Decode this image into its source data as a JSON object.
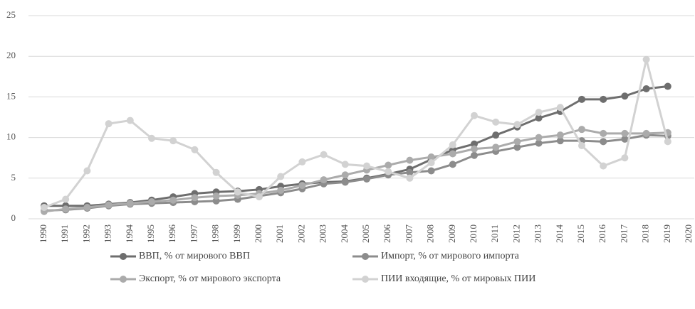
{
  "chart_data": {
    "type": "line",
    "categories": [
      "1990",
      "1991",
      "1992",
      "1993",
      "1994",
      "1995",
      "1996",
      "1997",
      "1998",
      "1999",
      "2000",
      "2001",
      "2002",
      "2003",
      "2004",
      "2005",
      "2006",
      "2007",
      "2008",
      "2009",
      "2010",
      "2011",
      "2012",
      "2013",
      "2014",
      "2015",
      "2016",
      "2017",
      "2018",
      "2019",
      "2020"
    ],
    "series": [
      {
        "name": "ВВП, % от мирового ВВП",
        "color": "#6e6e6e",
        "values": [
          1.6,
          1.6,
          1.6,
          1.8,
          2.0,
          2.3,
          2.7,
          3.1,
          3.3,
          3.4,
          3.6,
          4.0,
          4.3,
          4.5,
          4.6,
          5.0,
          5.5,
          6.1,
          7.3,
          8.5,
          9.2,
          10.3,
          11.3,
          12.4,
          13.2,
          14.7,
          14.7,
          15.1,
          16.0,
          16.3,
          null
        ]
      },
      {
        "name": "Импорт, % от мирового импорта",
        "color": "#8c8c8c",
        "values": [
          1.0,
          1.1,
          1.3,
          1.6,
          1.8,
          1.9,
          2.0,
          2.1,
          2.2,
          2.4,
          2.8,
          3.2,
          3.7,
          4.3,
          4.5,
          4.9,
          5.4,
          5.7,
          5.9,
          6.7,
          7.8,
          8.3,
          8.8,
          9.3,
          9.6,
          9.6,
          9.5,
          9.8,
          10.3,
          10.2,
          null
        ]
      },
      {
        "name": "Экспорт, % от мирового экспорта",
        "color": "#ababab",
        "values": [
          0.9,
          1.2,
          1.4,
          1.7,
          1.9,
          2.1,
          2.3,
          2.6,
          2.8,
          2.9,
          3.1,
          3.5,
          4.1,
          4.8,
          5.4,
          6.0,
          6.6,
          7.2,
          7.6,
          8.0,
          8.6,
          8.8,
          9.5,
          10.0,
          10.3,
          11.0,
          10.5,
          10.5,
          10.5,
          10.6,
          null
        ]
      },
      {
        "name": "ПИИ входящие, % от мировых ПИИ",
        "color": "#d2d2d2",
        "values": [
          1.4,
          2.4,
          5.9,
          11.7,
          12.1,
          9.9,
          9.6,
          8.5,
          5.7,
          3.3,
          2.7,
          5.2,
          7.0,
          7.9,
          6.7,
          6.5,
          5.8,
          5.0,
          6.9,
          9.1,
          12.7,
          11.9,
          11.6,
          13.1,
          13.7,
          9.0,
          6.5,
          7.5,
          19.6,
          9.5,
          null
        ]
      }
    ],
    "ylim": [
      0,
      25
    ],
    "yticks": [
      0,
      5,
      10,
      15,
      20,
      25
    ],
    "grid": true
  }
}
